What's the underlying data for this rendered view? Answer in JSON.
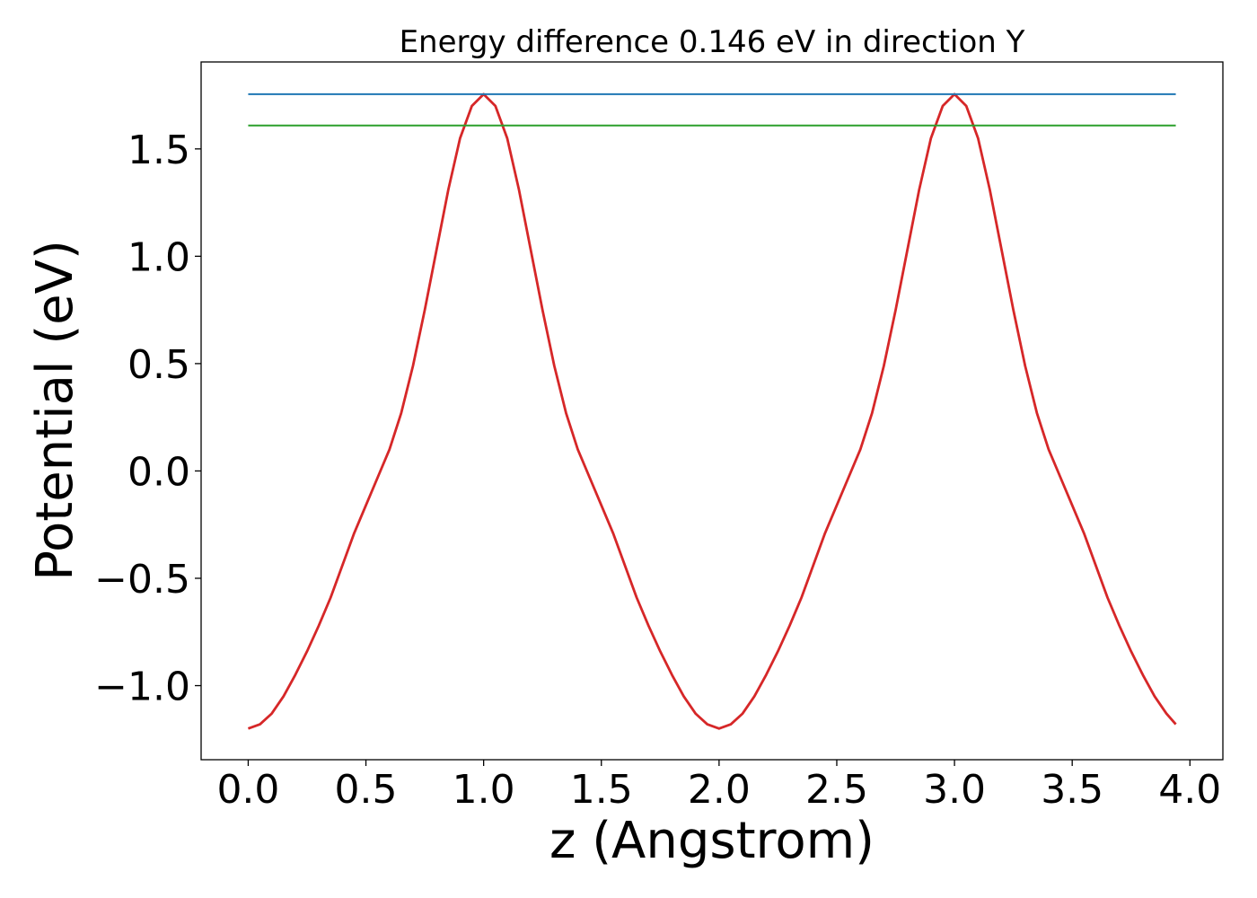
{
  "chart_data": {
    "type": "line",
    "title": "Energy difference 0.146 eV in direction Y",
    "xlabel": "z (Angstrom)",
    "ylabel": "Potential (eV)",
    "xlim": [
      -0.2,
      4.14
    ],
    "ylim": [
      -1.345,
      1.905
    ],
    "x_ticks": [
      0.0,
      0.5,
      1.0,
      1.5,
      2.0,
      2.5,
      3.0,
      3.5,
      4.0
    ],
    "x_tick_labels": [
      "0.0",
      "0.5",
      "1.0",
      "1.5",
      "2.0",
      "2.5",
      "3.0",
      "3.5",
      "4.0"
    ],
    "y_ticks": [
      -1.0,
      -0.5,
      0.0,
      0.5,
      1.0,
      1.5
    ],
    "y_tick_labels": [
      "−1.0",
      "−0.5",
      "0.0",
      "0.5",
      "1.0",
      "1.5"
    ],
    "grid": false,
    "legend": "none",
    "series": [
      {
        "color": "#d62728",
        "x": [
          0.0,
          0.05,
          0.1,
          0.15,
          0.2,
          0.25,
          0.3,
          0.35,
          0.4,
          0.45,
          0.5,
          0.55,
          0.6,
          0.65,
          0.7,
          0.75,
          0.8,
          0.85,
          0.9,
          0.95,
          1.0,
          1.05,
          1.1,
          1.15,
          1.2,
          1.25,
          1.3,
          1.35,
          1.4,
          1.45,
          1.5,
          1.55,
          1.6,
          1.65,
          1.7,
          1.75,
          1.8,
          1.85,
          1.9,
          1.95,
          2.0,
          2.05,
          2.1,
          2.15,
          2.2,
          2.25,
          2.3,
          2.35,
          2.4,
          2.45,
          2.5,
          2.55,
          2.6,
          2.65,
          2.7,
          2.75,
          2.8,
          2.85,
          2.9,
          2.95,
          3.0,
          3.05,
          3.1,
          3.15,
          3.2,
          3.25,
          3.3,
          3.35,
          3.4,
          3.45,
          3.5,
          3.55,
          3.6,
          3.65,
          3.7,
          3.75,
          3.8,
          3.85,
          3.9,
          3.94
        ],
        "y": [
          -1.2,
          -1.18,
          -1.13,
          -1.05,
          -0.95,
          -0.84,
          -0.72,
          -0.59,
          -0.44,
          -0.29,
          -0.16,
          -0.03,
          0.1,
          0.27,
          0.49,
          0.75,
          1.03,
          1.31,
          1.55,
          1.7,
          1.755,
          1.7,
          1.55,
          1.31,
          1.03,
          0.75,
          0.49,
          0.27,
          0.1,
          -0.03,
          -0.16,
          -0.29,
          -0.44,
          -0.59,
          -0.72,
          -0.84,
          -0.95,
          -1.05,
          -1.13,
          -1.18,
          -1.2,
          -1.18,
          -1.13,
          -1.05,
          -0.95,
          -0.84,
          -0.72,
          -0.59,
          -0.44,
          -0.29,
          -0.16,
          -0.03,
          0.1,
          0.27,
          0.49,
          0.75,
          1.03,
          1.31,
          1.55,
          1.7,
          1.755,
          1.7,
          1.55,
          1.31,
          1.03,
          0.75,
          0.49,
          0.27,
          0.1,
          -0.03,
          -0.16,
          -0.29,
          -0.44,
          -0.59,
          -0.72,
          -0.84,
          -0.95,
          -1.05,
          -1.13,
          -1.18
        ]
      },
      {
        "color": "#1f77b4",
        "x": [
          0.0,
          3.94
        ],
        "y": [
          1.755,
          1.755
        ]
      },
      {
        "color": "#2ca02c",
        "x": [
          0.0,
          3.94
        ],
        "y": [
          1.609,
          1.609
        ]
      }
    ]
  }
}
